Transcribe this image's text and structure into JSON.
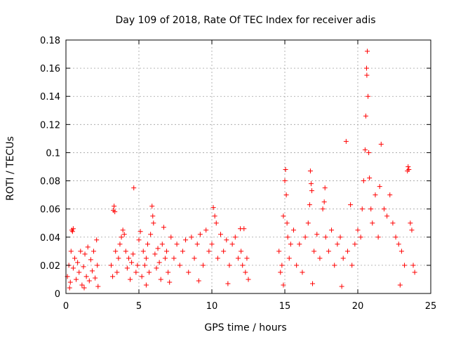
{
  "chart_data": {
    "type": "scatter",
    "title": "Day 109 of 2018, Rate Of TEC Index for receiver adis",
    "xlabel": "GPS time / hours",
    "ylabel": "ROTI / TECUs",
    "xlim": [
      0,
      25
    ],
    "ylim": [
      0,
      0.18
    ],
    "xticks": [
      0,
      5,
      10,
      15,
      20,
      25
    ],
    "yticks": [
      0,
      0.02,
      0.04,
      0.06,
      0.08,
      0.1,
      0.12,
      0.14,
      0.16,
      0.18
    ],
    "xtick_labels": [
      "0",
      "5",
      "10",
      "15",
      "20",
      "25"
    ],
    "ytick_labels": [
      "0",
      "0.02",
      "0.04",
      "0.06",
      "0.08",
      "0.1",
      "0.12",
      "0.14",
      "0.16",
      "0.18"
    ],
    "grid": true,
    "marker": "+",
    "color": "#ff0000",
    "series": [
      {
        "name": "ROTI",
        "points": [
          [
            0.1,
            0.012
          ],
          [
            0.2,
            0.02
          ],
          [
            0.3,
            0.008
          ],
          [
            0.35,
            0.03
          ],
          [
            0.4,
            0.045
          ],
          [
            0.45,
            0.044
          ],
          [
            0.5,
            0.046
          ],
          [
            0.5,
            0.018
          ],
          [
            0.6,
            0.025
          ],
          [
            0.7,
            0.01
          ],
          [
            0.8,
            0.022
          ],
          [
            0.9,
            0.015
          ],
          [
            1.0,
            0.03
          ],
          [
            1.1,
            0.006
          ],
          [
            1.2,
            0.019
          ],
          [
            1.3,
            0.028
          ],
          [
            1.4,
            0.012
          ],
          [
            1.5,
            0.033
          ],
          [
            1.6,
            0.009
          ],
          [
            1.7,
            0.024
          ],
          [
            1.8,
            0.016
          ],
          [
            1.9,
            0.03
          ],
          [
            2.0,
            0.011
          ],
          [
            2.1,
            0.038
          ],
          [
            2.15,
            0.02
          ],
          [
            2.2,
            0.005
          ],
          [
            0.25,
            0.004
          ],
          [
            1.25,
            0.004
          ],
          [
            3.1,
            0.02
          ],
          [
            3.2,
            0.012
          ],
          [
            3.25,
            0.059
          ],
          [
            3.3,
            0.062
          ],
          [
            3.35,
            0.058
          ],
          [
            3.4,
            0.03
          ],
          [
            3.5,
            0.015
          ],
          [
            3.6,
            0.025
          ],
          [
            3.7,
            0.035
          ],
          [
            3.8,
            0.04
          ],
          [
            3.9,
            0.045
          ],
          [
            4.0,
            0.042
          ],
          [
            4.1,
            0.03
          ],
          [
            4.2,
            0.018
          ],
          [
            4.3,
            0.025
          ],
          [
            4.4,
            0.01
          ],
          [
            4.5,
            0.022
          ],
          [
            4.6,
            0.028
          ],
          [
            4.65,
            0.075
          ],
          [
            4.8,
            0.015
          ],
          [
            4.9,
            0.02
          ],
          [
            5.0,
            0.038
          ],
          [
            5.1,
            0.044
          ],
          [
            5.2,
            0.012
          ],
          [
            5.3,
            0.03
          ],
          [
            5.4,
            0.02
          ],
          [
            5.5,
            0.025
          ],
          [
            5.6,
            0.035
          ],
          [
            5.7,
            0.015
          ],
          [
            5.8,
            0.042
          ],
          [
            5.9,
            0.062
          ],
          [
            5.95,
            0.055
          ],
          [
            6.0,
            0.05
          ],
          [
            6.1,
            0.028
          ],
          [
            6.2,
            0.018
          ],
          [
            6.3,
            0.032
          ],
          [
            6.4,
            0.022
          ],
          [
            6.5,
            0.01
          ],
          [
            6.6,
            0.035
          ],
          [
            6.7,
            0.047
          ],
          [
            6.8,
            0.025
          ],
          [
            6.9,
            0.03
          ],
          [
            7.0,
            0.015
          ],
          [
            7.2,
            0.04
          ],
          [
            7.4,
            0.025
          ],
          [
            7.6,
            0.035
          ],
          [
            7.8,
            0.02
          ],
          [
            8.0,
            0.03
          ],
          [
            8.2,
            0.038
          ],
          [
            8.4,
            0.015
          ],
          [
            8.6,
            0.04
          ],
          [
            8.8,
            0.025
          ],
          [
            9.0,
            0.035
          ],
          [
            9.2,
            0.042
          ],
          [
            9.4,
            0.02
          ],
          [
            9.6,
            0.045
          ],
          [
            9.8,
            0.03
          ],
          [
            10.0,
            0.035
          ],
          [
            10.1,
            0.061
          ],
          [
            10.2,
            0.055
          ],
          [
            10.3,
            0.05
          ],
          [
            10.4,
            0.025
          ],
          [
            10.6,
            0.042
          ],
          [
            10.8,
            0.03
          ],
          [
            11.0,
            0.038
          ],
          [
            11.2,
            0.02
          ],
          [
            11.4,
            0.035
          ],
          [
            11.6,
            0.04
          ],
          [
            11.8,
            0.025
          ],
          [
            11.95,
            0.046
          ],
          [
            12.0,
            0.03
          ],
          [
            12.1,
            0.02
          ],
          [
            12.2,
            0.046
          ],
          [
            12.3,
            0.015
          ],
          [
            12.4,
            0.025
          ],
          [
            12.5,
            0.01
          ],
          [
            7.1,
            0.008
          ],
          [
            9.1,
            0.009
          ],
          [
            11.1,
            0.007
          ],
          [
            5.5,
            0.006
          ],
          [
            14.6,
            0.03
          ],
          [
            14.7,
            0.015
          ],
          [
            14.8,
            0.02
          ],
          [
            14.9,
            0.055
          ],
          [
            15.0,
            0.08
          ],
          [
            15.05,
            0.088
          ],
          [
            15.1,
            0.07
          ],
          [
            15.15,
            0.05
          ],
          [
            15.2,
            0.04
          ],
          [
            15.3,
            0.025
          ],
          [
            15.4,
            0.035
          ],
          [
            15.6,
            0.045
          ],
          [
            15.8,
            0.02
          ],
          [
            16.0,
            0.035
          ],
          [
            16.2,
            0.015
          ],
          [
            16.4,
            0.04
          ],
          [
            16.6,
            0.05
          ],
          [
            16.7,
            0.063
          ],
          [
            16.75,
            0.087
          ],
          [
            16.8,
            0.078
          ],
          [
            16.85,
            0.073
          ],
          [
            17.0,
            0.03
          ],
          [
            17.2,
            0.042
          ],
          [
            17.4,
            0.025
          ],
          [
            17.6,
            0.06
          ],
          [
            17.7,
            0.065
          ],
          [
            17.75,
            0.075
          ],
          [
            17.8,
            0.04
          ],
          [
            18.0,
            0.03
          ],
          [
            18.2,
            0.045
          ],
          [
            18.4,
            0.02
          ],
          [
            18.6,
            0.035
          ],
          [
            18.8,
            0.04
          ],
          [
            19.0,
            0.025
          ],
          [
            19.2,
            0.108
          ],
          [
            19.3,
            0.03
          ],
          [
            19.5,
            0.063
          ],
          [
            19.6,
            0.02
          ],
          [
            19.8,
            0.035
          ],
          [
            20.0,
            0.045
          ],
          [
            20.2,
            0.04
          ],
          [
            20.3,
            0.06
          ],
          [
            20.4,
            0.08
          ],
          [
            20.5,
            0.102
          ],
          [
            20.55,
            0.126
          ],
          [
            20.6,
            0.16
          ],
          [
            20.62,
            0.155
          ],
          [
            20.65,
            0.172
          ],
          [
            20.7,
            0.14
          ],
          [
            20.75,
            0.1
          ],
          [
            20.8,
            0.082
          ],
          [
            20.9,
            0.06
          ],
          [
            21.0,
            0.05
          ],
          [
            21.2,
            0.07
          ],
          [
            21.4,
            0.04
          ],
          [
            21.5,
            0.076
          ],
          [
            21.6,
            0.106
          ],
          [
            21.8,
            0.06
          ],
          [
            22.0,
            0.055
          ],
          [
            22.2,
            0.07
          ],
          [
            22.4,
            0.05
          ],
          [
            22.6,
            0.04
          ],
          [
            22.8,
            0.035
          ],
          [
            23.0,
            0.03
          ],
          [
            23.2,
            0.02
          ],
          [
            23.4,
            0.087
          ],
          [
            23.45,
            0.09
          ],
          [
            23.5,
            0.088
          ],
          [
            23.6,
            0.05
          ],
          [
            23.7,
            0.045
          ],
          [
            23.8,
            0.02
          ],
          [
            23.9,
            0.015
          ],
          [
            14.9,
            0.006
          ],
          [
            16.9,
            0.007
          ],
          [
            18.9,
            0.005
          ],
          [
            22.9,
            0.006
          ]
        ]
      }
    ]
  }
}
